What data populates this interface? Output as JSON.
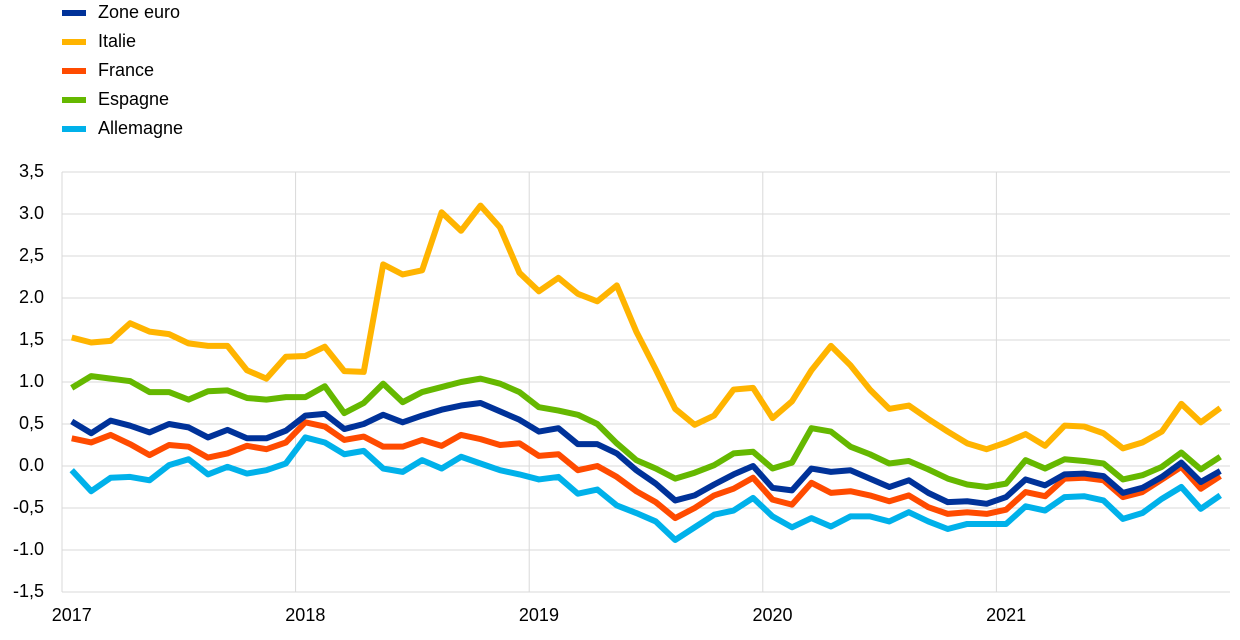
{
  "chart_data": {
    "type": "line",
    "categories": [
      "2017",
      null,
      null,
      null,
      null,
      null,
      null,
      null,
      null,
      null,
      null,
      null,
      "2018",
      null,
      null,
      null,
      null,
      null,
      null,
      null,
      null,
      null,
      null,
      null,
      "2019",
      null,
      null,
      null,
      null,
      null,
      null,
      null,
      null,
      null,
      null,
      null,
      "2020",
      null,
      null,
      null,
      null,
      null,
      null,
      null,
      null,
      null,
      null,
      null,
      "2021",
      null,
      null,
      null,
      null,
      null,
      null,
      null,
      null,
      null,
      null,
      null
    ],
    "series": [
      {
        "name": "Zone euro",
        "color": "#003299",
        "values": [
          0.53,
          0.39,
          0.54,
          0.48,
          0.4,
          0.5,
          0.46,
          0.34,
          0.43,
          0.33,
          0.33,
          0.42,
          0.6,
          0.62,
          0.44,
          0.5,
          0.61,
          0.52,
          0.6,
          0.67,
          0.72,
          0.75,
          0.65,
          0.55,
          0.41,
          0.45,
          0.26,
          0.26,
          0.15,
          -0.05,
          -0.21,
          -0.41,
          -0.35,
          -0.22,
          -0.1,
          0.0,
          -0.26,
          -0.29,
          -0.03,
          -0.07,
          -0.05,
          -0.15,
          -0.25,
          -0.17,
          -0.32,
          -0.43,
          -0.42,
          -0.45,
          -0.37,
          -0.16,
          -0.23,
          -0.1,
          -0.09,
          -0.12,
          -0.32,
          -0.26,
          -0.13,
          0.04,
          -0.19,
          -0.06
        ]
      },
      {
        "name": "Italie",
        "color": "#ffb400",
        "values": [
          1.53,
          1.47,
          1.49,
          1.7,
          1.6,
          1.57,
          1.46,
          1.43,
          1.43,
          1.14,
          1.04,
          1.3,
          1.31,
          1.42,
          1.13,
          1.12,
          2.4,
          2.28,
          2.33,
          3.02,
          2.8,
          3.1,
          2.84,
          2.3,
          2.08,
          2.24,
          2.05,
          1.96,
          2.15,
          1.6,
          1.15,
          0.68,
          0.49,
          0.6,
          0.91,
          0.93,
          0.57,
          0.77,
          1.14,
          1.43,
          1.2,
          0.91,
          0.68,
          0.72,
          0.56,
          0.41,
          0.27,
          0.2,
          0.28,
          0.38,
          0.24,
          0.48,
          0.47,
          0.39,
          0.21,
          0.28,
          0.41,
          0.74,
          0.52,
          0.69
        ]
      },
      {
        "name": "France",
        "color": "#ff4b00",
        "values": [
          0.33,
          0.28,
          0.37,
          0.26,
          0.13,
          0.25,
          0.23,
          0.1,
          0.15,
          0.24,
          0.2,
          0.28,
          0.52,
          0.47,
          0.31,
          0.35,
          0.23,
          0.23,
          0.31,
          0.24,
          0.37,
          0.32,
          0.25,
          0.27,
          0.12,
          0.14,
          -0.05,
          0.0,
          -0.13,
          -0.3,
          -0.43,
          -0.62,
          -0.5,
          -0.35,
          -0.27,
          -0.14,
          -0.4,
          -0.46,
          -0.2,
          -0.32,
          -0.3,
          -0.35,
          -0.42,
          -0.35,
          -0.49,
          -0.57,
          -0.55,
          -0.57,
          -0.52,
          -0.31,
          -0.36,
          -0.15,
          -0.14,
          -0.17,
          -0.37,
          -0.31,
          -0.16,
          -0.01,
          -0.27,
          -0.12
        ]
      },
      {
        "name": "Espagne",
        "color": "#65b800",
        "values": [
          0.93,
          1.07,
          1.04,
          1.01,
          0.88,
          0.88,
          0.79,
          0.89,
          0.9,
          0.81,
          0.79,
          0.82,
          0.82,
          0.95,
          0.63,
          0.75,
          0.98,
          0.76,
          0.88,
          0.94,
          1.0,
          1.04,
          0.98,
          0.88,
          0.7,
          0.66,
          0.61,
          0.5,
          0.27,
          0.07,
          -0.03,
          -0.15,
          -0.08,
          0.01,
          0.15,
          0.17,
          -0.03,
          0.04,
          0.45,
          0.41,
          0.23,
          0.14,
          0.03,
          0.06,
          -0.04,
          -0.15,
          -0.22,
          -0.25,
          -0.21,
          0.07,
          -0.03,
          0.08,
          0.06,
          0.03,
          -0.16,
          -0.11,
          -0.01,
          0.16,
          -0.04,
          0.11
        ]
      },
      {
        "name": "Allemagne",
        "color": "#00b1ea",
        "values": [
          -0.05,
          -0.3,
          -0.14,
          -0.13,
          -0.17,
          0.01,
          0.08,
          -0.1,
          -0.01,
          -0.09,
          -0.05,
          0.03,
          0.34,
          0.28,
          0.14,
          0.18,
          -0.03,
          -0.07,
          0.07,
          -0.03,
          0.11,
          0.03,
          -0.05,
          -0.1,
          -0.16,
          -0.13,
          -0.33,
          -0.28,
          -0.47,
          -0.56,
          -0.66,
          -0.88,
          -0.73,
          -0.58,
          -0.53,
          -0.38,
          -0.6,
          -0.73,
          -0.62,
          -0.72,
          -0.6,
          -0.6,
          -0.66,
          -0.55,
          -0.66,
          -0.75,
          -0.69,
          -0.69,
          -0.69,
          -0.48,
          -0.53,
          -0.37,
          -0.36,
          -0.41,
          -0.63,
          -0.56,
          -0.39,
          -0.25,
          -0.51,
          -0.35
        ]
      }
    ],
    "ylim": [
      -1.5,
      3.5
    ],
    "yticks": [
      {
        "value": -1.5,
        "label": "-1,5"
      },
      {
        "value": -1.0,
        "label": "-1.0"
      },
      {
        "value": -0.5,
        "label": "-0,5"
      },
      {
        "value": 0.0,
        "label": "0.0"
      },
      {
        "value": 0.5,
        "label": "0,5"
      },
      {
        "value": 1.0,
        "label": "1.0"
      },
      {
        "value": 1.5,
        "label": "1,5"
      },
      {
        "value": 2.0,
        "label": "2.0"
      },
      {
        "value": 2.5,
        "label": "2,5"
      },
      {
        "value": 3.0,
        "label": "3.0"
      },
      {
        "value": 3.5,
        "label": "3,5"
      }
    ],
    "grid": true
  }
}
